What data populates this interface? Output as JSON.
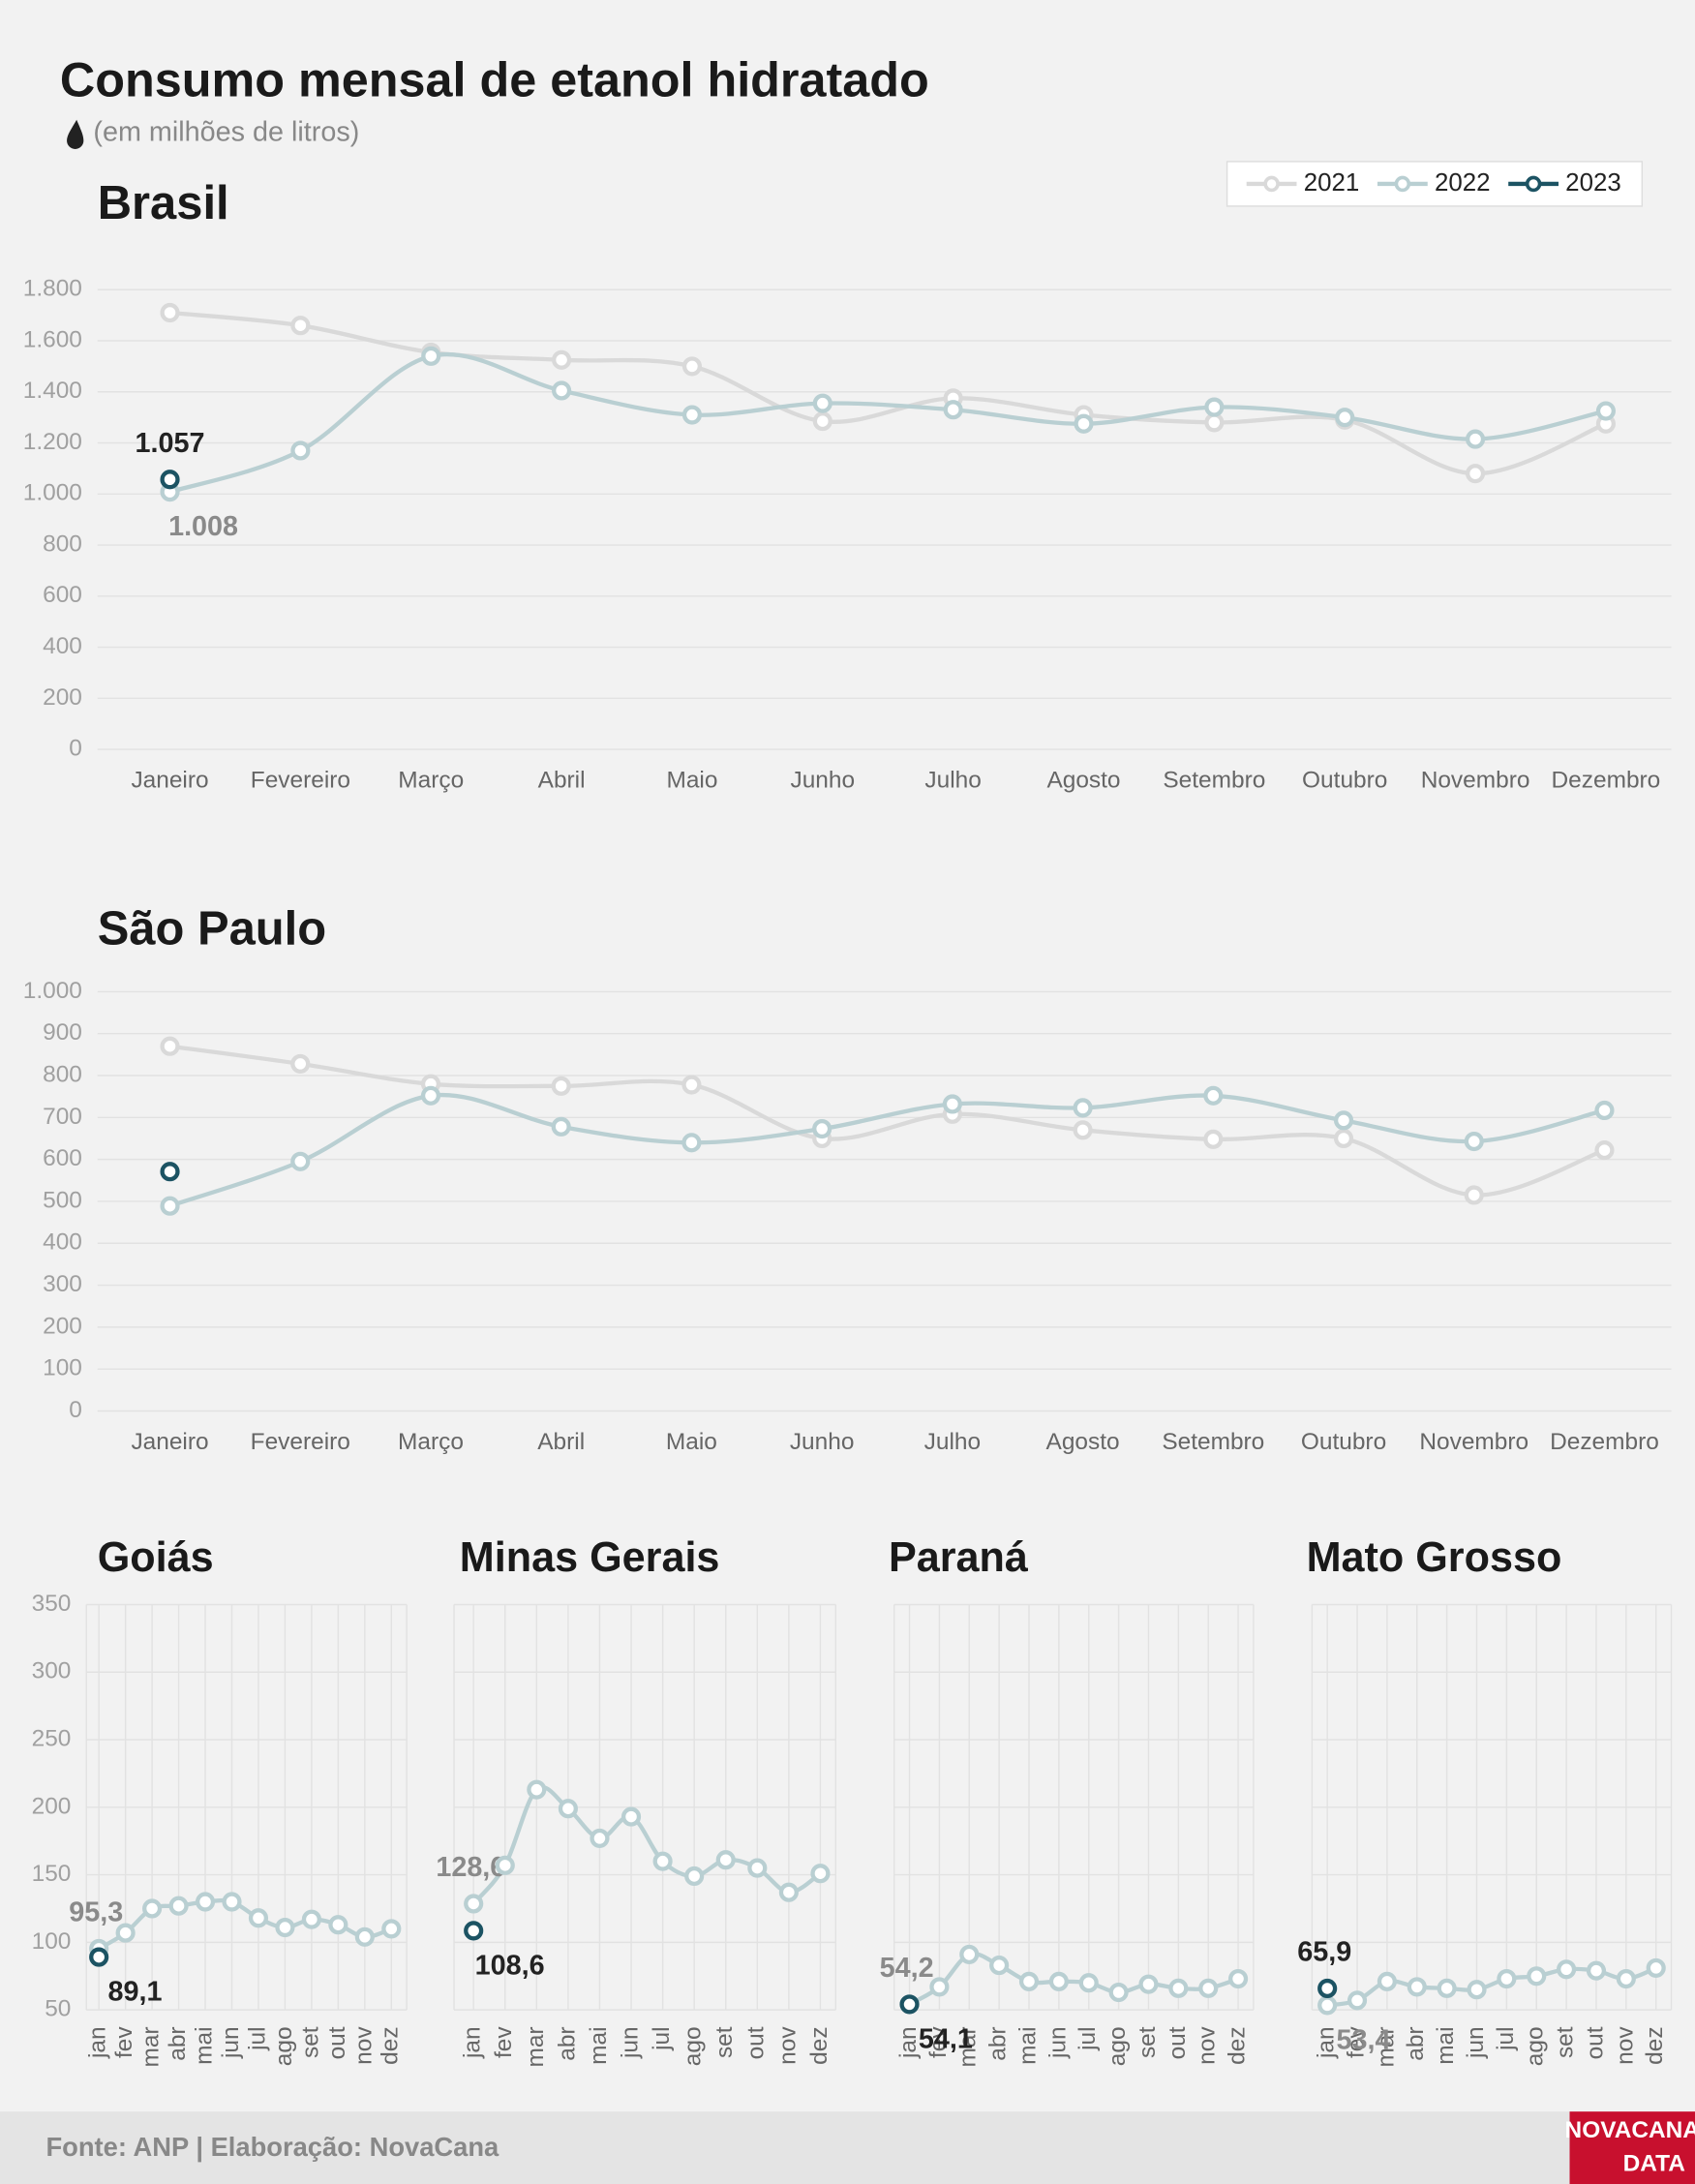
{
  "title": "Consumo mensal de etanol hidratado",
  "subtitle": "(em milhões de litros)",
  "footer": "Fonte: ANP | Elaboração: NovaCana",
  "logo": {
    "line1": "NOVACANA",
    "line2": "DATA"
  },
  "chart_data": [
    {
      "type": "line",
      "title": "Brasil",
      "categories": [
        "Janeiro",
        "Fevereiro",
        "Março",
        "Abril",
        "Maio",
        "Junho",
        "Julho",
        "Agosto",
        "Setembro",
        "Outubro",
        "Novembro",
        "Dezembro"
      ],
      "series": [
        {
          "name": "2021",
          "color": "#d9d9d9",
          "values": [
            1710,
            1660,
            1555,
            1525,
            1500,
            1285,
            1375,
            1310,
            1280,
            1290,
            1080,
            1275
          ]
        },
        {
          "name": "2022",
          "color": "#b9cfd2",
          "values": [
            1008,
            1170,
            1540,
            1405,
            1310,
            1355,
            1330,
            1275,
            1340,
            1300,
            1215,
            1325
          ],
          "value_labels": [
            "1.008",
            null,
            null,
            null,
            null,
            null,
            null,
            null,
            null,
            null,
            null,
            null
          ]
        },
        {
          "name": "2023",
          "color": "#1c5363",
          "values": [
            1057,
            null,
            null,
            null,
            null,
            null,
            null,
            null,
            null,
            null,
            null,
            null
          ],
          "value_labels": [
            "1.057",
            null,
            null,
            null,
            null,
            null,
            null,
            null,
            null,
            null,
            null,
            null
          ]
        }
      ],
      "ylim": [
        0,
        1800
      ],
      "yticks": [
        0,
        200,
        400,
        600,
        800,
        {
          "value": 1000,
          "label": "1.000"
        },
        {
          "value": 1200,
          "label": "1.200"
        },
        {
          "value": 1400,
          "label": "1.400"
        },
        {
          "value": 1600,
          "label": "1.600"
        },
        {
          "value": 1800,
          "label": "1.800"
        }
      ],
      "grid": true,
      "legend": "top-right"
    },
    {
      "type": "line",
      "title": "São Paulo",
      "categories": [
        "Janeiro",
        "Fevereiro",
        "Março",
        "Abril",
        "Maio",
        "Junho",
        "Julho",
        "Agosto",
        "Setembro",
        "Outubro",
        "Novembro",
        "Dezembro"
      ],
      "series": [
        {
          "name": "2021",
          "color": "#d9d9d9",
          "values": [
            870,
            828,
            780,
            775,
            778,
            650,
            708,
            670,
            648,
            650,
            515,
            622
          ]
        },
        {
          "name": "2022",
          "color": "#b9cfd2",
          "values": [
            489,
            595,
            752,
            678,
            640,
            673,
            732,
            723,
            752,
            693,
            643,
            717
          ]
        },
        {
          "name": "2023",
          "color": "#1c5363",
          "values": [
            571,
            null,
            null,
            null,
            null,
            null,
            null,
            null,
            null,
            null,
            null,
            null
          ]
        }
      ],
      "ylim": [
        0,
        1000
      ],
      "yticks": [
        0,
        100,
        200,
        300,
        400,
        500,
        600,
        700,
        800,
        900,
        {
          "value": 1000,
          "label": "1.000"
        }
      ],
      "grid": true
    },
    {
      "type": "line",
      "title": "Goiás",
      "categories": [
        "jan",
        "fev",
        "mar",
        "abr",
        "mai",
        "jun",
        "jul",
        "ago",
        "set",
        "out",
        "nov",
        "dez"
      ],
      "series": [
        {
          "name": "2022",
          "color": "#b9cfd2",
          "values": [
            95.3,
            107,
            125,
            127,
            130,
            130,
            118,
            111,
            117,
            113,
            104,
            110
          ],
          "value_labels": [
            "95,3",
            null,
            null,
            null,
            null,
            null,
            null,
            null,
            null,
            null,
            null,
            null
          ]
        },
        {
          "name": "2023",
          "color": "#1c5363",
          "values": [
            89.1,
            null,
            null,
            null,
            null,
            null,
            null,
            null,
            null,
            null,
            null,
            null
          ],
          "value_labels": [
            "89,1",
            null,
            null,
            null,
            null,
            null,
            null,
            null,
            null,
            null,
            null,
            null
          ]
        }
      ],
      "ylim": [
        50,
        350
      ],
      "yticks": [
        50,
        100,
        150,
        200,
        250,
        300,
        350
      ],
      "grid": true
    },
    {
      "type": "line",
      "title": "Minas Gerais",
      "categories": [
        "jan",
        "fev",
        "mar",
        "abr",
        "mai",
        "jun",
        "jul",
        "ago",
        "set",
        "out",
        "nov",
        "dez"
      ],
      "series": [
        {
          "name": "2022",
          "color": "#b9cfd2",
          "values": [
            128.6,
            157,
            213,
            199,
            177,
            193,
            160,
            149,
            161,
            155,
            137,
            151
          ],
          "value_labels": [
            "128,6",
            null,
            null,
            null,
            null,
            null,
            null,
            null,
            null,
            null,
            null,
            null
          ]
        },
        {
          "name": "2023",
          "color": "#1c5363",
          "values": [
            108.6,
            null,
            null,
            null,
            null,
            null,
            null,
            null,
            null,
            null,
            null,
            null
          ],
          "value_labels": [
            "108,6",
            null,
            null,
            null,
            null,
            null,
            null,
            null,
            null,
            null,
            null,
            null
          ]
        }
      ],
      "ylim": [
        50,
        350
      ],
      "yticks": [
        50,
        100,
        150,
        200,
        250,
        300,
        350
      ],
      "grid": true
    },
    {
      "type": "line",
      "title": "Paraná",
      "categories": [
        "jan",
        "fev",
        "mar",
        "abr",
        "mai",
        "jun",
        "jul",
        "ago",
        "set",
        "out",
        "nov",
        "dez"
      ],
      "series": [
        {
          "name": "2022",
          "color": "#b9cfd2",
          "values": [
            54.2,
            67,
            91,
            83,
            71,
            71,
            70,
            63,
            69,
            66,
            66,
            73
          ],
          "value_labels": [
            "54,2",
            null,
            null,
            null,
            null,
            null,
            null,
            null,
            null,
            null,
            null,
            null
          ]
        },
        {
          "name": "2023",
          "color": "#1c5363",
          "values": [
            54.1,
            null,
            null,
            null,
            null,
            null,
            null,
            null,
            null,
            null,
            null,
            null
          ],
          "value_labels": [
            "54,1",
            null,
            null,
            null,
            null,
            null,
            null,
            null,
            null,
            null,
            null,
            null
          ]
        }
      ],
      "ylim": [
        50,
        350
      ],
      "yticks": [
        50,
        100,
        150,
        200,
        250,
        300,
        350
      ],
      "grid": true
    },
    {
      "type": "line",
      "title": "Mato Grosso",
      "categories": [
        "jan",
        "fev",
        "mar",
        "abr",
        "mai",
        "jun",
        "jul",
        "ago",
        "set",
        "out",
        "nov",
        "dez"
      ],
      "series": [
        {
          "name": "2022",
          "color": "#b9cfd2",
          "values": [
            53.4,
            57,
            71,
            67,
            66,
            65,
            73,
            75,
            80,
            79,
            73,
            81
          ],
          "value_labels": [
            "53,4",
            null,
            null,
            null,
            null,
            null,
            null,
            null,
            null,
            null,
            null,
            null
          ]
        },
        {
          "name": "2023",
          "color": "#1c5363",
          "values": [
            65.9,
            null,
            null,
            null,
            null,
            null,
            null,
            null,
            null,
            null,
            null,
            null
          ],
          "value_labels": [
            "65,9",
            null,
            null,
            null,
            null,
            null,
            null,
            null,
            null,
            null,
            null,
            null
          ]
        }
      ],
      "ylim": [
        50,
        350
      ],
      "yticks": [
        50,
        100,
        150,
        200,
        250,
        300,
        350
      ],
      "grid": true
    }
  ]
}
